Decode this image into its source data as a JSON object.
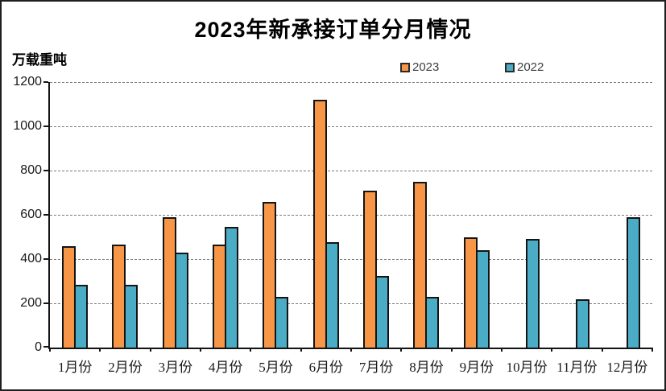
{
  "title": "2023年新承接订单分月情况",
  "y_axis_unit": "万载重吨",
  "legend": [
    {
      "label": "2023",
      "color": "#F79646"
    },
    {
      "label": "2022",
      "color": "#4BACC6"
    }
  ],
  "colors": {
    "series_2023": "#F79646",
    "series_2022": "#4BACC6",
    "bar_border": "#141414",
    "gridline": "#7a7a7a"
  },
  "chart_data": {
    "type": "bar",
    "title": "2023年新承接订单分月情况",
    "xlabel": "",
    "ylabel": "万载重吨",
    "categories": [
      "1月份",
      "2月份",
      "3月份",
      "4月份",
      "5月份",
      "6月份",
      "7月份",
      "8月份",
      "9月份",
      "10月份",
      "11月份",
      "12月份"
    ],
    "series": [
      {
        "name": "2023",
        "color": "#F79646",
        "values": [
          460,
          465,
          590,
          465,
          660,
          1120,
          710,
          750,
          500,
          null,
          null,
          null
        ]
      },
      {
        "name": "2022",
        "color": "#4BACC6",
        "values": [
          285,
          285,
          430,
          545,
          230,
          475,
          325,
          230,
          440,
          490,
          220,
          590
        ]
      }
    ],
    "ylim": [
      0,
      1200
    ],
    "ytick_step": 200,
    "grid": "horizontal-dashed",
    "legend_position": "top-center"
  }
}
